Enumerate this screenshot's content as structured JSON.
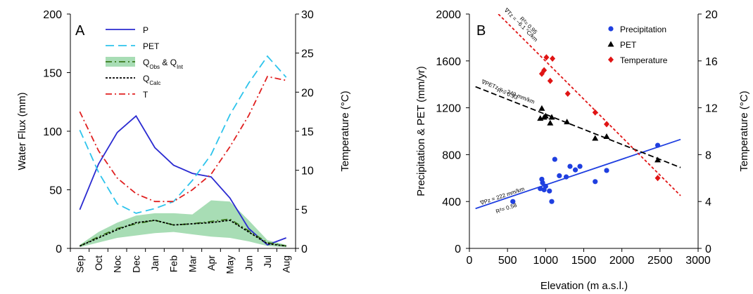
{
  "chart_data": [
    {
      "panel": "A",
      "type": "line",
      "categories": [
        "Sep",
        "Oct",
        "Noc",
        "Dec",
        "Jan",
        "Feb",
        "Mar",
        "Apr",
        "May",
        "Jun",
        "Jul",
        "Aug"
      ],
      "ylabel": "Water Flux (mm)",
      "y2label": "Temperature (°C)",
      "ylim": [
        0,
        200
      ],
      "y2lim": [
        0,
        30
      ],
      "yticks": [
        "0",
        "50",
        "100",
        "150",
        "200"
      ],
      "y2ticks": [
        "0",
        "5",
        "10",
        "15",
        "20",
        "25",
        "30"
      ],
      "legend_position": "top-center",
      "series": [
        {
          "name": "P",
          "axis": "left",
          "color": "#2b2bd1",
          "dash": "solid",
          "values": [
            33,
            72,
            99,
            113,
            86,
            71,
            64,
            61,
            43,
            17,
            3,
            9
          ]
        },
        {
          "name": "PET",
          "axis": "left",
          "color": "#2ec4ec",
          "dash": "longdash",
          "values": [
            101,
            65,
            38,
            30,
            34,
            40,
            58,
            80,
            114,
            141,
            164,
            146
          ]
        },
        {
          "name": "T",
          "axis": "right",
          "color": "#e02020",
          "dash": "dashdot",
          "values": [
            17.5,
            12.5,
            9,
            7,
            6,
            6,
            7.5,
            9.5,
            13,
            17,
            22,
            21.5
          ]
        },
        {
          "name_parts": [
            "Q",
            "Obs",
            " & Q",
            "Int"
          ],
          "axis": "left",
          "color": "#3a7a1c",
          "band_color": "#a8ddb5",
          "dash": "dashdot",
          "values": [
            2,
            10,
            17,
            21,
            24,
            20,
            21,
            23,
            25,
            15,
            5,
            2
          ],
          "band_low": [
            1,
            5,
            9,
            11,
            13,
            14,
            12,
            10,
            9,
            6,
            2,
            1
          ],
          "band_high": [
            3,
            14,
            22,
            28,
            30,
            30,
            29,
            41,
            40,
            24,
            7,
            3
          ]
        },
        {
          "name_parts": [
            "Q",
            "Calc"
          ],
          "axis": "left",
          "color": "#000000",
          "dash": "shortdash",
          "values": [
            2,
            9,
            16,
            22,
            24,
            20,
            21,
            22,
            24,
            14,
            4,
            2
          ]
        }
      ]
    },
    {
      "panel": "B",
      "type": "scatter",
      "xlabel": "Elevation (m a.s.l.)",
      "ylabel": "Precipitation & PET (mm/yr)",
      "y2label": "Temperature (°C)",
      "xlim": [
        0,
        3000
      ],
      "ylim": [
        0,
        2000
      ],
      "y2lim": [
        0,
        20
      ],
      "xticks": [
        "0",
        "500",
        "1000",
        "1500",
        "2000",
        "2500",
        "3000"
      ],
      "yticks": [
        "0",
        "400",
        "800",
        "1200",
        "1600",
        "2000"
      ],
      "y2ticks": [
        "0",
        "4",
        "8",
        "12",
        "16",
        "20"
      ],
      "legend_position": "top-right",
      "series": [
        {
          "name": "Precipitation",
          "axis": "left",
          "marker": "circle",
          "color": "#1f3fe0",
          "points": [
            [
              570,
              400
            ],
            [
              930,
              510
            ],
            [
              950,
              590
            ],
            [
              960,
              560
            ],
            [
              980,
              500
            ],
            [
              1000,
              530
            ],
            [
              1050,
              490
            ],
            [
              1080,
              400
            ],
            [
              1120,
              760
            ],
            [
              1180,
              620
            ],
            [
              1270,
              610
            ],
            [
              1320,
              700
            ],
            [
              1390,
              670
            ],
            [
              1450,
              700
            ],
            [
              1650,
              570
            ],
            [
              1800,
              665
            ],
            [
              2470,
              880
            ]
          ],
          "fit": {
            "from": [
              80,
              340
            ],
            "to": [
              2770,
              930
            ],
            "annotation": "∇P⁠z = 222 mm/km",
            "r2": "R²= 0.58"
          }
        },
        {
          "name": "PET",
          "axis": "left",
          "marker": "triangle",
          "color": "#000000",
          "points": [
            [
              930,
              1110
            ],
            [
              950,
              1195
            ],
            [
              980,
              1120
            ],
            [
              1000,
              1130
            ],
            [
              1060,
              1070
            ],
            [
              1080,
              1120
            ],
            [
              1280,
              1080
            ],
            [
              1650,
              940
            ],
            [
              1800,
              955
            ],
            [
              2470,
              755
            ]
          ],
          "fit": {
            "from": [
              80,
              1380
            ],
            "to": [
              2770,
              690
            ],
            "annotation": "∇PET⁠z = −249 mm/km",
            "r2": "R²= 0.93"
          }
        },
        {
          "name": "Temperature",
          "axis": "right",
          "marker": "diamond",
          "color": "#e01414",
          "points": [
            [
              950,
              14.9
            ],
            [
              980,
              15.2
            ],
            [
              1010,
              16.3
            ],
            [
              1060,
              14.3
            ],
            [
              1090,
              16.2
            ],
            [
              1290,
              13.2
            ],
            [
              1650,
              11.6
            ],
            [
              1800,
              10.6
            ],
            [
              2470,
              6.0
            ]
          ],
          "fit": {
            "from": [
              380,
              20.0
            ],
            "to": [
              2770,
              4.5
            ],
            "annotation": "∇T⁠z = −6.1 °C/km",
            "r2": "R²= 0.95"
          }
        }
      ]
    }
  ]
}
